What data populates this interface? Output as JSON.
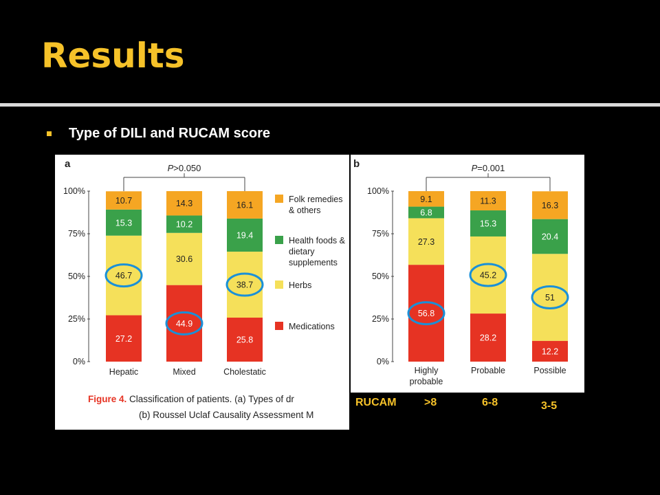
{
  "slide": {
    "title": "Results",
    "bullet": "Type of DILI and RUCAM score"
  },
  "colors": {
    "folk": "#f5a623",
    "health": "#3aa14a",
    "herbs": "#f5e05a",
    "medications": "#e63323",
    "circle": "#1a90d8",
    "title": "#f6c229"
  },
  "caption": {
    "line1_prefix": "Figure 4.",
    "line1_text": " Classification of patients. (a) Types of dr",
    "line2": "(b) Roussel Uclaf Causality Assessment M"
  },
  "rucam": {
    "label": "RUCAM",
    "values": [
      ">8",
      "6-8",
      "3-5"
    ]
  },
  "chart_data": [
    {
      "type": "bar",
      "stacked": true,
      "panel_label": "a",
      "significance": "P>0.050",
      "categories": [
        "Hepatic",
        "Mixed",
        "Cholestatic"
      ],
      "ylim": [
        0,
        100
      ],
      "yticks": [
        "0%",
        "25%",
        "50%",
        "75%",
        "100%"
      ],
      "series": [
        {
          "name": "Medications",
          "values": [
            27.2,
            44.9,
            25.8
          ],
          "color": "#e63323"
        },
        {
          "name": "Herbs",
          "values": [
            46.7,
            30.6,
            38.7
          ],
          "color": "#f5e05a"
        },
        {
          "name": "Health foods & dietary supplements",
          "values": [
            15.3,
            10.2,
            19.4
          ],
          "color": "#3aa14a"
        },
        {
          "name": "Folk remedies & others",
          "values": [
            10.7,
            14.3,
            16.1
          ],
          "color": "#f5a623"
        }
      ],
      "legend": [
        {
          "lines": [
            "Folk remedies",
            "& others"
          ],
          "color": "#f5a623"
        },
        {
          "lines": [
            "Health foods &",
            "dietary",
            "supplements"
          ],
          "color": "#3aa14a"
        },
        {
          "lines": [
            "Herbs"
          ],
          "color": "#f5e05a"
        },
        {
          "lines": [
            "Medications"
          ],
          "color": "#e63323"
        }
      ],
      "highlighted": [
        [
          0,
          1
        ],
        [
          1,
          0
        ],
        [
          2,
          1
        ]
      ]
    },
    {
      "type": "bar",
      "stacked": true,
      "panel_label": "b",
      "significance": "P=0.001",
      "categories": [
        [
          "Highly",
          "probable"
        ],
        [
          "Probable"
        ],
        [
          "Possible"
        ]
      ],
      "ylim": [
        0,
        100
      ],
      "yticks": [
        "0%",
        "25%",
        "50%",
        "75%",
        "100%"
      ],
      "series": [
        {
          "name": "Medications",
          "values": [
            56.8,
            28.2,
            12.2
          ],
          "color": "#e63323"
        },
        {
          "name": "Herbs",
          "values": [
            27.3,
            45.2,
            51
          ],
          "color": "#f5e05a"
        },
        {
          "name": "Health foods & dietary supplements",
          "values": [
            6.8,
            15.3,
            20.4
          ],
          "color": "#3aa14a"
        },
        {
          "name": "Folk remedies & others",
          "values": [
            9.1,
            11.3,
            16.3
          ],
          "color": "#f5a623"
        }
      ],
      "highlighted": [
        [
          0,
          0
        ],
        [
          1,
          1
        ],
        [
          2,
          1
        ]
      ]
    }
  ]
}
